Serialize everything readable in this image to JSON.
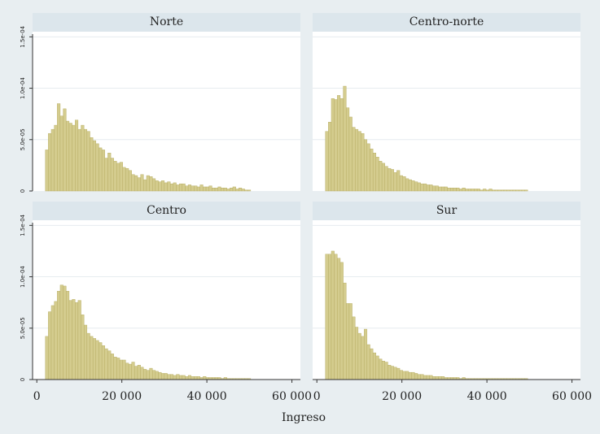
{
  "chart_data": {
    "type": "bar",
    "subtype": "histogram-facets",
    "xlabel": "Ingreso",
    "ylabel": "",
    "xlim": [
      -1000,
      62000
    ],
    "ylim": [
      0,
      0.000155
    ],
    "bin_width": 700,
    "x_ticks": [
      0,
      20000,
      40000,
      60000
    ],
    "x_tick_labels": [
      "0",
      "20 000",
      "40 000",
      "60 000"
    ],
    "y_ticks": [
      0,
      5e-05,
      0.0001,
      0.00015
    ],
    "y_tick_labels": [
      "0",
      "5.0e-05",
      "1.0e-04",
      "1.5e-04"
    ],
    "grid": true,
    "bar_color": "#d4cc8e",
    "bar_edge_color": "#b3a95e",
    "panel_background": "#ffffff",
    "strip_color": "#dce6ec",
    "outer_background": "#e8eef1",
    "panels": [
      {
        "name": "Norte",
        "bin_start": 2000,
        "values": [
          4e-05,
          5.6e-05,
          6e-05,
          6.4e-05,
          8.5e-05,
          7.3e-05,
          8e-05,
          6.8e-05,
          6.6e-05,
          6.4e-05,
          6.9e-05,
          6e-05,
          6.4e-05,
          6e-05,
          5.8e-05,
          5.2e-05,
          4.9e-05,
          4.6e-05,
          4.2e-05,
          4e-05,
          3.2e-05,
          3.7e-05,
          3.2e-05,
          2.9e-05,
          2.7e-05,
          2.8e-05,
          2.3e-05,
          2.2e-05,
          2e-05,
          1.6e-05,
          1.5e-05,
          1.3e-05,
          1.6e-05,
          1.1e-05,
          1.5e-05,
          1.4e-05,
          1.2e-05,
          1e-05,
          9e-06,
          1e-05,
          8e-06,
          9e-06,
          7e-06,
          8e-06,
          6e-06,
          7e-06,
          7e-06,
          5e-06,
          6e-06,
          5e-06,
          5e-06,
          4e-06,
          6e-06,
          4e-06,
          4e-06,
          5e-06,
          3e-06,
          3e-06,
          4e-06,
          3e-06,
          3e-06,
          2e-06,
          3e-06,
          4e-06,
          2e-06,
          3e-06,
          2e-06,
          1e-06,
          1e-06
        ]
      },
      {
        "name": "Centro-norte",
        "bin_start": 2000,
        "values": [
          5.8e-05,
          6.7e-05,
          9e-05,
          8.9e-05,
          9.3e-05,
          9e-05,
          0.000102,
          8.1e-05,
          7.2e-05,
          6.2e-05,
          6e-05,
          5.8e-05,
          5.6e-05,
          5e-05,
          4.6e-05,
          4.1e-05,
          3.7e-05,
          3.3e-05,
          2.9e-05,
          2.7e-05,
          2.4e-05,
          2.2e-05,
          2.1e-05,
          1.8e-05,
          2e-05,
          1.5e-05,
          1.4e-05,
          1.2e-05,
          1.1e-05,
          1e-05,
          9e-06,
          8e-06,
          7e-06,
          7e-06,
          6e-06,
          6e-06,
          5e-06,
          5e-06,
          4e-06,
          4e-06,
          4e-06,
          3e-06,
          3e-06,
          3e-06,
          3e-06,
          2e-06,
          3e-06,
          2e-06,
          2e-06,
          2e-06,
          2e-06,
          2e-06,
          1e-06,
          2e-06,
          1e-06,
          2e-06,
          1e-06,
          1e-06,
          1e-06,
          1e-06,
          1e-06,
          1e-06,
          1e-06,
          1e-06,
          1e-06,
          1e-06,
          1e-06,
          1e-06
        ]
      },
      {
        "name": "Centro",
        "bin_start": 2000,
        "values": [
          4.2e-05,
          6.6e-05,
          7.2e-05,
          7.6e-05,
          8.6e-05,
          9.2e-05,
          9.1e-05,
          8.6e-05,
          7.7e-05,
          7.8e-05,
          7.5e-05,
          7.7e-05,
          6.3e-05,
          5.3e-05,
          4.5e-05,
          4.2e-05,
          4e-05,
          3.8e-05,
          3.6e-05,
          3.3e-05,
          3e-05,
          2.8e-05,
          2.5e-05,
          2.2e-05,
          2.1e-05,
          1.9e-05,
          1.9e-05,
          1.6e-05,
          1.5e-05,
          1.7e-05,
          1.3e-05,
          1.4e-05,
          1.2e-05,
          1e-05,
          9e-06,
          1.1e-05,
          9e-06,
          8e-06,
          7e-06,
          6e-06,
          6e-06,
          5e-06,
          5e-06,
          4e-06,
          5e-06,
          4e-06,
          4e-06,
          3e-06,
          4e-06,
          3e-06,
          3e-06,
          3e-06,
          2e-06,
          3e-06,
          2e-06,
          2e-06,
          2e-06,
          2e-06,
          2e-06,
          1e-06,
          2e-06,
          1e-06,
          1e-06,
          1e-06,
          1e-06,
          1e-06,
          1e-06,
          1e-06,
          1e-06
        ]
      },
      {
        "name": "Sur",
        "bin_start": 2000,
        "values": [
          0.000122,
          0.000122,
          0.000125,
          0.000122,
          0.000118,
          0.000114,
          9.4e-05,
          7.4e-05,
          7.4e-05,
          6.1e-05,
          5.1e-05,
          4.5e-05,
          4.2e-05,
          4.9e-05,
          3.4e-05,
          3e-05,
          2.6e-05,
          2.3e-05,
          2e-05,
          1.8e-05,
          1.7e-05,
          1.4e-05,
          1.3e-05,
          1.2e-05,
          1.1e-05,
          9e-06,
          8e-06,
          8e-06,
          7e-06,
          7e-06,
          6e-06,
          5e-06,
          5e-06,
          4e-06,
          4e-06,
          4e-06,
          3e-06,
          3e-06,
          3e-06,
          3e-06,
          2e-06,
          2e-06,
          2e-06,
          2e-06,
          2e-06,
          1e-06,
          2e-06,
          1e-06,
          1e-06,
          1e-06,
          1e-06,
          1e-06,
          1e-06,
          1e-06,
          1e-06,
          1e-06,
          1e-06,
          1e-06,
          1e-06,
          1e-06,
          1e-06,
          1e-06,
          1e-06,
          1e-06,
          1e-06,
          1e-06,
          1e-06,
          1e-06
        ]
      }
    ]
  }
}
